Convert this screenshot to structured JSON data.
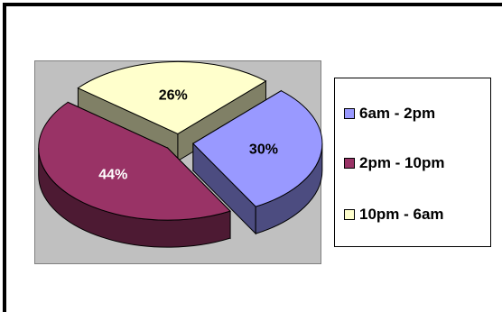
{
  "chart_data": {
    "type": "pie",
    "style": "3d-exploded",
    "categories": [
      "6am - 2pm",
      "2pm - 10pm",
      "10pm - 6am"
    ],
    "values": [
      30,
      44,
      26
    ],
    "labels": [
      "30%",
      "44%",
      "26%"
    ],
    "colors": {
      "top": [
        "#9999ff",
        "#993366",
        "#ffffcc"
      ],
      "side": [
        "#4c4c80",
        "#4d1a33",
        "#808066"
      ],
      "label_text": [
        "#000000",
        "#ffffff",
        "#000000"
      ]
    },
    "plot_background": "#c0c0c0",
    "legend_position": "right"
  }
}
